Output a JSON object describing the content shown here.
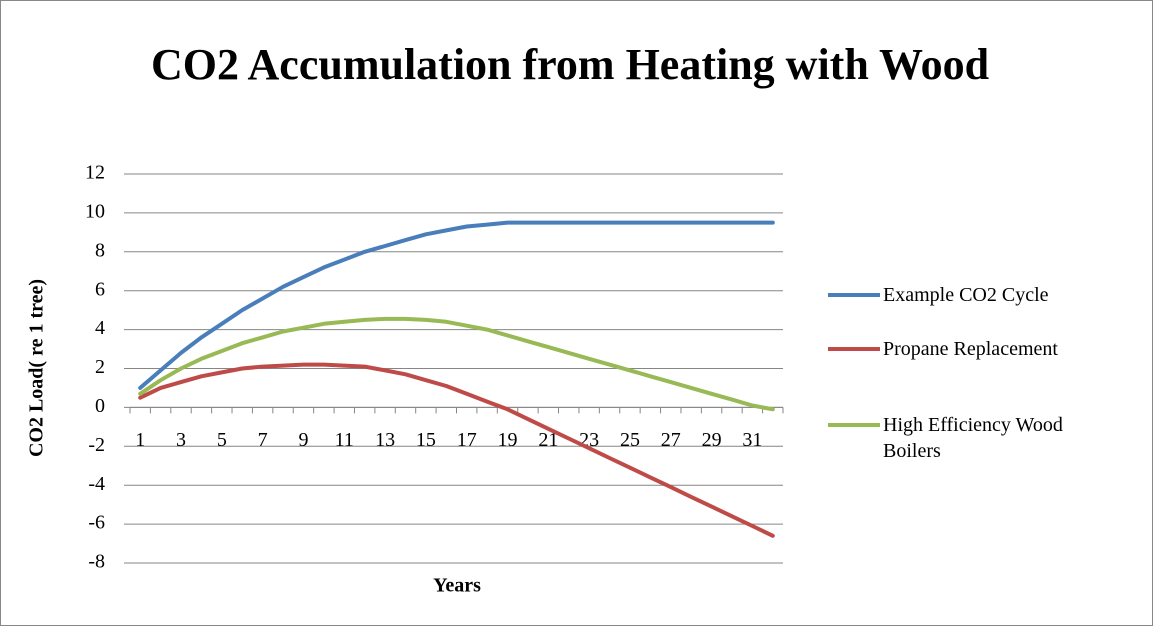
{
  "chart_data": {
    "type": "line",
    "title": "CO2 Accumulation from Heating with Wood",
    "x_label": "Years",
    "y_label": "CO2 Load( re 1 tree)",
    "categories": [
      "1",
      null,
      "3",
      null,
      "5",
      null,
      "7",
      null,
      "9",
      null,
      "11",
      null,
      "13",
      null,
      "15",
      null,
      "17",
      null,
      "19",
      null,
      "21",
      null,
      "23",
      null,
      "25",
      null,
      "27",
      null,
      "29",
      null,
      "31",
      null
    ],
    "series": [
      {
        "name": "Example CO2 Cycle",
        "color": "#4a7ebb",
        "values": [
          1.0,
          1.9,
          2.8,
          3.6,
          4.3,
          5.0,
          5.6,
          6.2,
          6.7,
          7.2,
          7.6,
          8.0,
          8.3,
          8.6,
          8.9,
          9.1,
          9.3,
          9.4,
          9.5,
          9.5,
          9.5,
          9.5,
          9.5,
          9.5,
          9.5,
          9.5,
          9.5,
          9.5,
          9.5,
          9.5,
          9.5,
          9.5
        ]
      },
      {
        "name": "Propane Replacement",
        "color": "#be4b48",
        "values": [
          0.5,
          1.0,
          1.3,
          1.6,
          1.8,
          2.0,
          2.1,
          2.15,
          2.2,
          2.2,
          2.15,
          2.1,
          1.9,
          1.7,
          1.4,
          1.1,
          0.7,
          0.3,
          -0.1,
          -0.6,
          -1.1,
          -1.6,
          -2.1,
          -2.6,
          -3.1,
          -3.6,
          -4.1,
          -4.6,
          -5.1,
          -5.6,
          -6.1,
          -6.6
        ]
      },
      {
        "name": "High Efficiency Wood Boilers",
        "color": "#98b954",
        "values": [
          0.7,
          1.4,
          2.0,
          2.5,
          2.9,
          3.3,
          3.6,
          3.9,
          4.1,
          4.3,
          4.4,
          4.5,
          4.55,
          4.55,
          4.5,
          4.4,
          4.2,
          4.0,
          3.7,
          3.4,
          3.1,
          2.8,
          2.5,
          2.2,
          1.9,
          1.6,
          1.3,
          1.0,
          0.7,
          0.4,
          0.1,
          -0.1
        ]
      }
    ],
    "ylim": [
      -8,
      12
    ],
    "yticks": [
      -8,
      -6,
      -4,
      -2,
      0,
      2,
      4,
      6,
      8,
      10,
      12
    ],
    "grid": true,
    "legend": "right"
  }
}
